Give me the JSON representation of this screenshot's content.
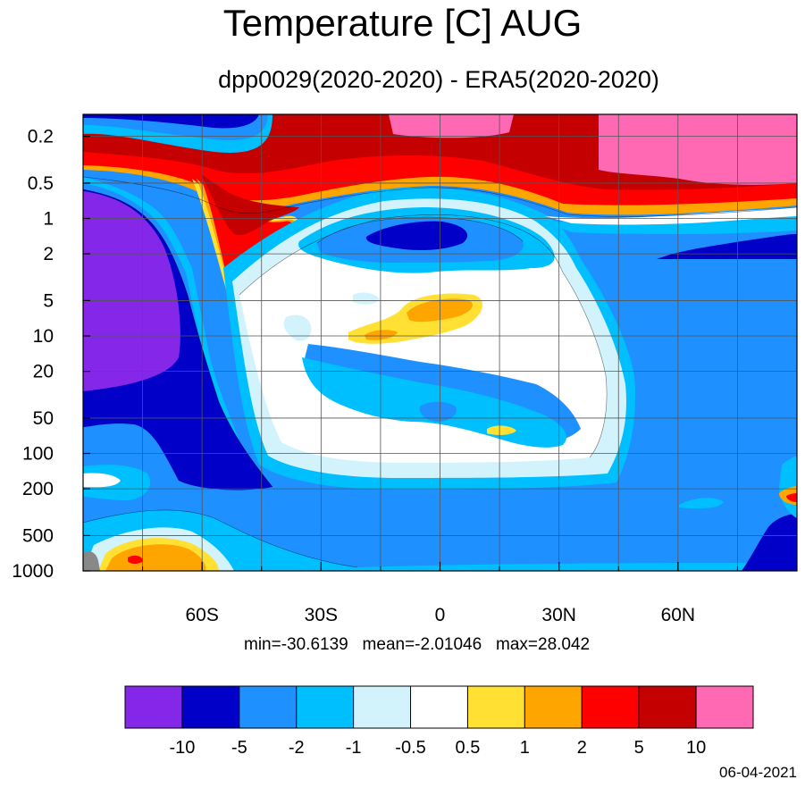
{
  "chart_data": {
    "type": "heatmap",
    "title": "Temperature [C] AUG",
    "subtitle": "dpp0029(2020-2020) - ERA5(2020-2020)",
    "x_ticks": [
      {
        "value": -60,
        "label": "60S"
      },
      {
        "value": -30,
        "label": "30S"
      },
      {
        "value": 0,
        "label": "0"
      },
      {
        "value": 30,
        "label": "30N"
      },
      {
        "value": 60,
        "label": "60N"
      }
    ],
    "x_range": [
      -90,
      90
    ],
    "y_ticks": [
      0.2,
      0.5,
      1,
      2,
      5,
      10,
      20,
      50,
      100,
      200,
      500,
      1000
    ],
    "y_scale": "log",
    "y_inverted": true,
    "grid": true,
    "stats": {
      "min": "-30.6139",
      "mean": "-2.01046",
      "max": "28.042"
    },
    "stats_text": "min=-30.6139   mean=-2.01046   max=28.042",
    "colorbar": {
      "levels": [
        "-10",
        "-5",
        "-2",
        "-1",
        "-0.5",
        "0.5",
        "1",
        "2",
        "5",
        "10"
      ],
      "colors": [
        "#8427e8",
        "#0000c8",
        "#1e90ff",
        "#00bfff",
        "#d2f3fc",
        "#ffffff",
        "#ffe033",
        "#ffa500",
        "#ff0000",
        "#c40000",
        "#ff69b4"
      ]
    }
  },
  "footer": {
    "date": "06-04-2021"
  }
}
